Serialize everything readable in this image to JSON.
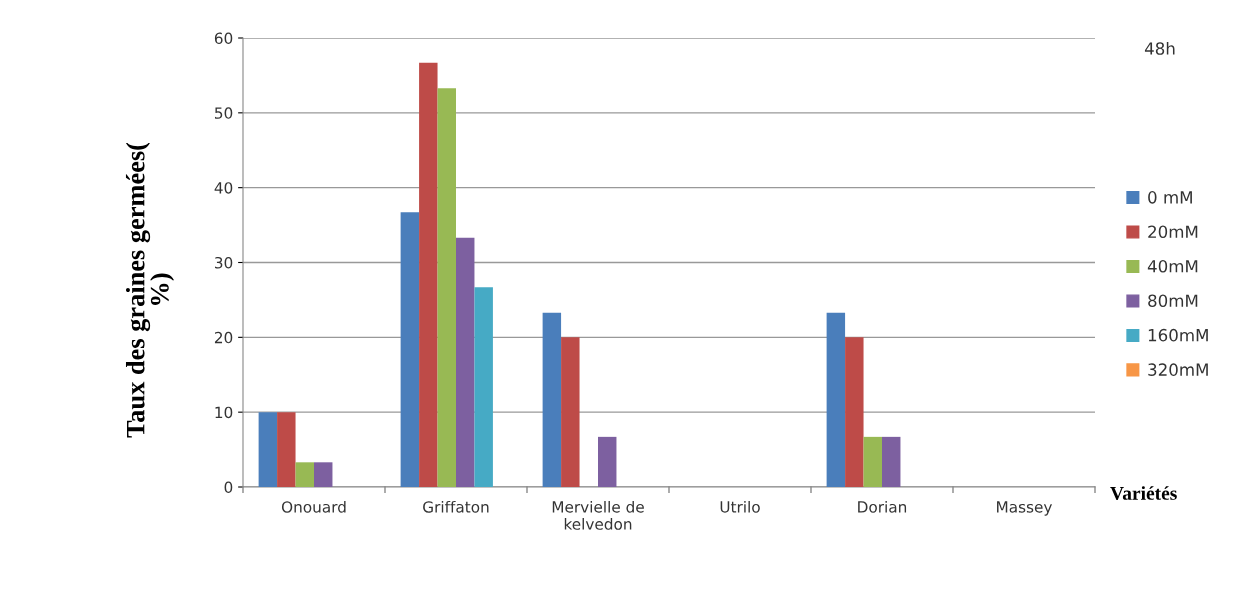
{
  "chart_data": {
    "type": "bar",
    "title": "48h",
    "ylabel": "Taux des graines germées(\n%)",
    "xlabel": "Variétés",
    "categories": [
      "Onouard",
      "Griffaton",
      "Mervielle de\nkelvedon",
      "Utrilo",
      "Dorian",
      "Massey"
    ],
    "series": [
      {
        "name": "0 mM",
        "color": "#4a7ebb",
        "values": [
          10,
          36.7,
          23.3,
          0,
          23.3,
          0
        ]
      },
      {
        "name": "20mM",
        "color": "#be4b48",
        "values": [
          10,
          56.7,
          20,
          0,
          20,
          0
        ]
      },
      {
        "name": "40mM",
        "color": "#98b954",
        "values": [
          3.3,
          53.3,
          0,
          0,
          6.7,
          0
        ]
      },
      {
        "name": "80mM",
        "color": "#7d60a0",
        "values": [
          3.3,
          33.3,
          6.7,
          0,
          6.7,
          0
        ]
      },
      {
        "name": "160mM",
        "color": "#46aac5",
        "values": [
          0,
          26.7,
          0,
          0,
          0,
          0
        ]
      },
      {
        "name": "320mM",
        "color": "#f79646",
        "values": [
          0,
          0,
          0,
          0,
          0,
          0
        ]
      }
    ],
    "ylim": [
      0,
      60
    ],
    "yticks": [
      0,
      10,
      20,
      30,
      40,
      50,
      60
    ],
    "grid": "y",
    "legend": "right"
  }
}
